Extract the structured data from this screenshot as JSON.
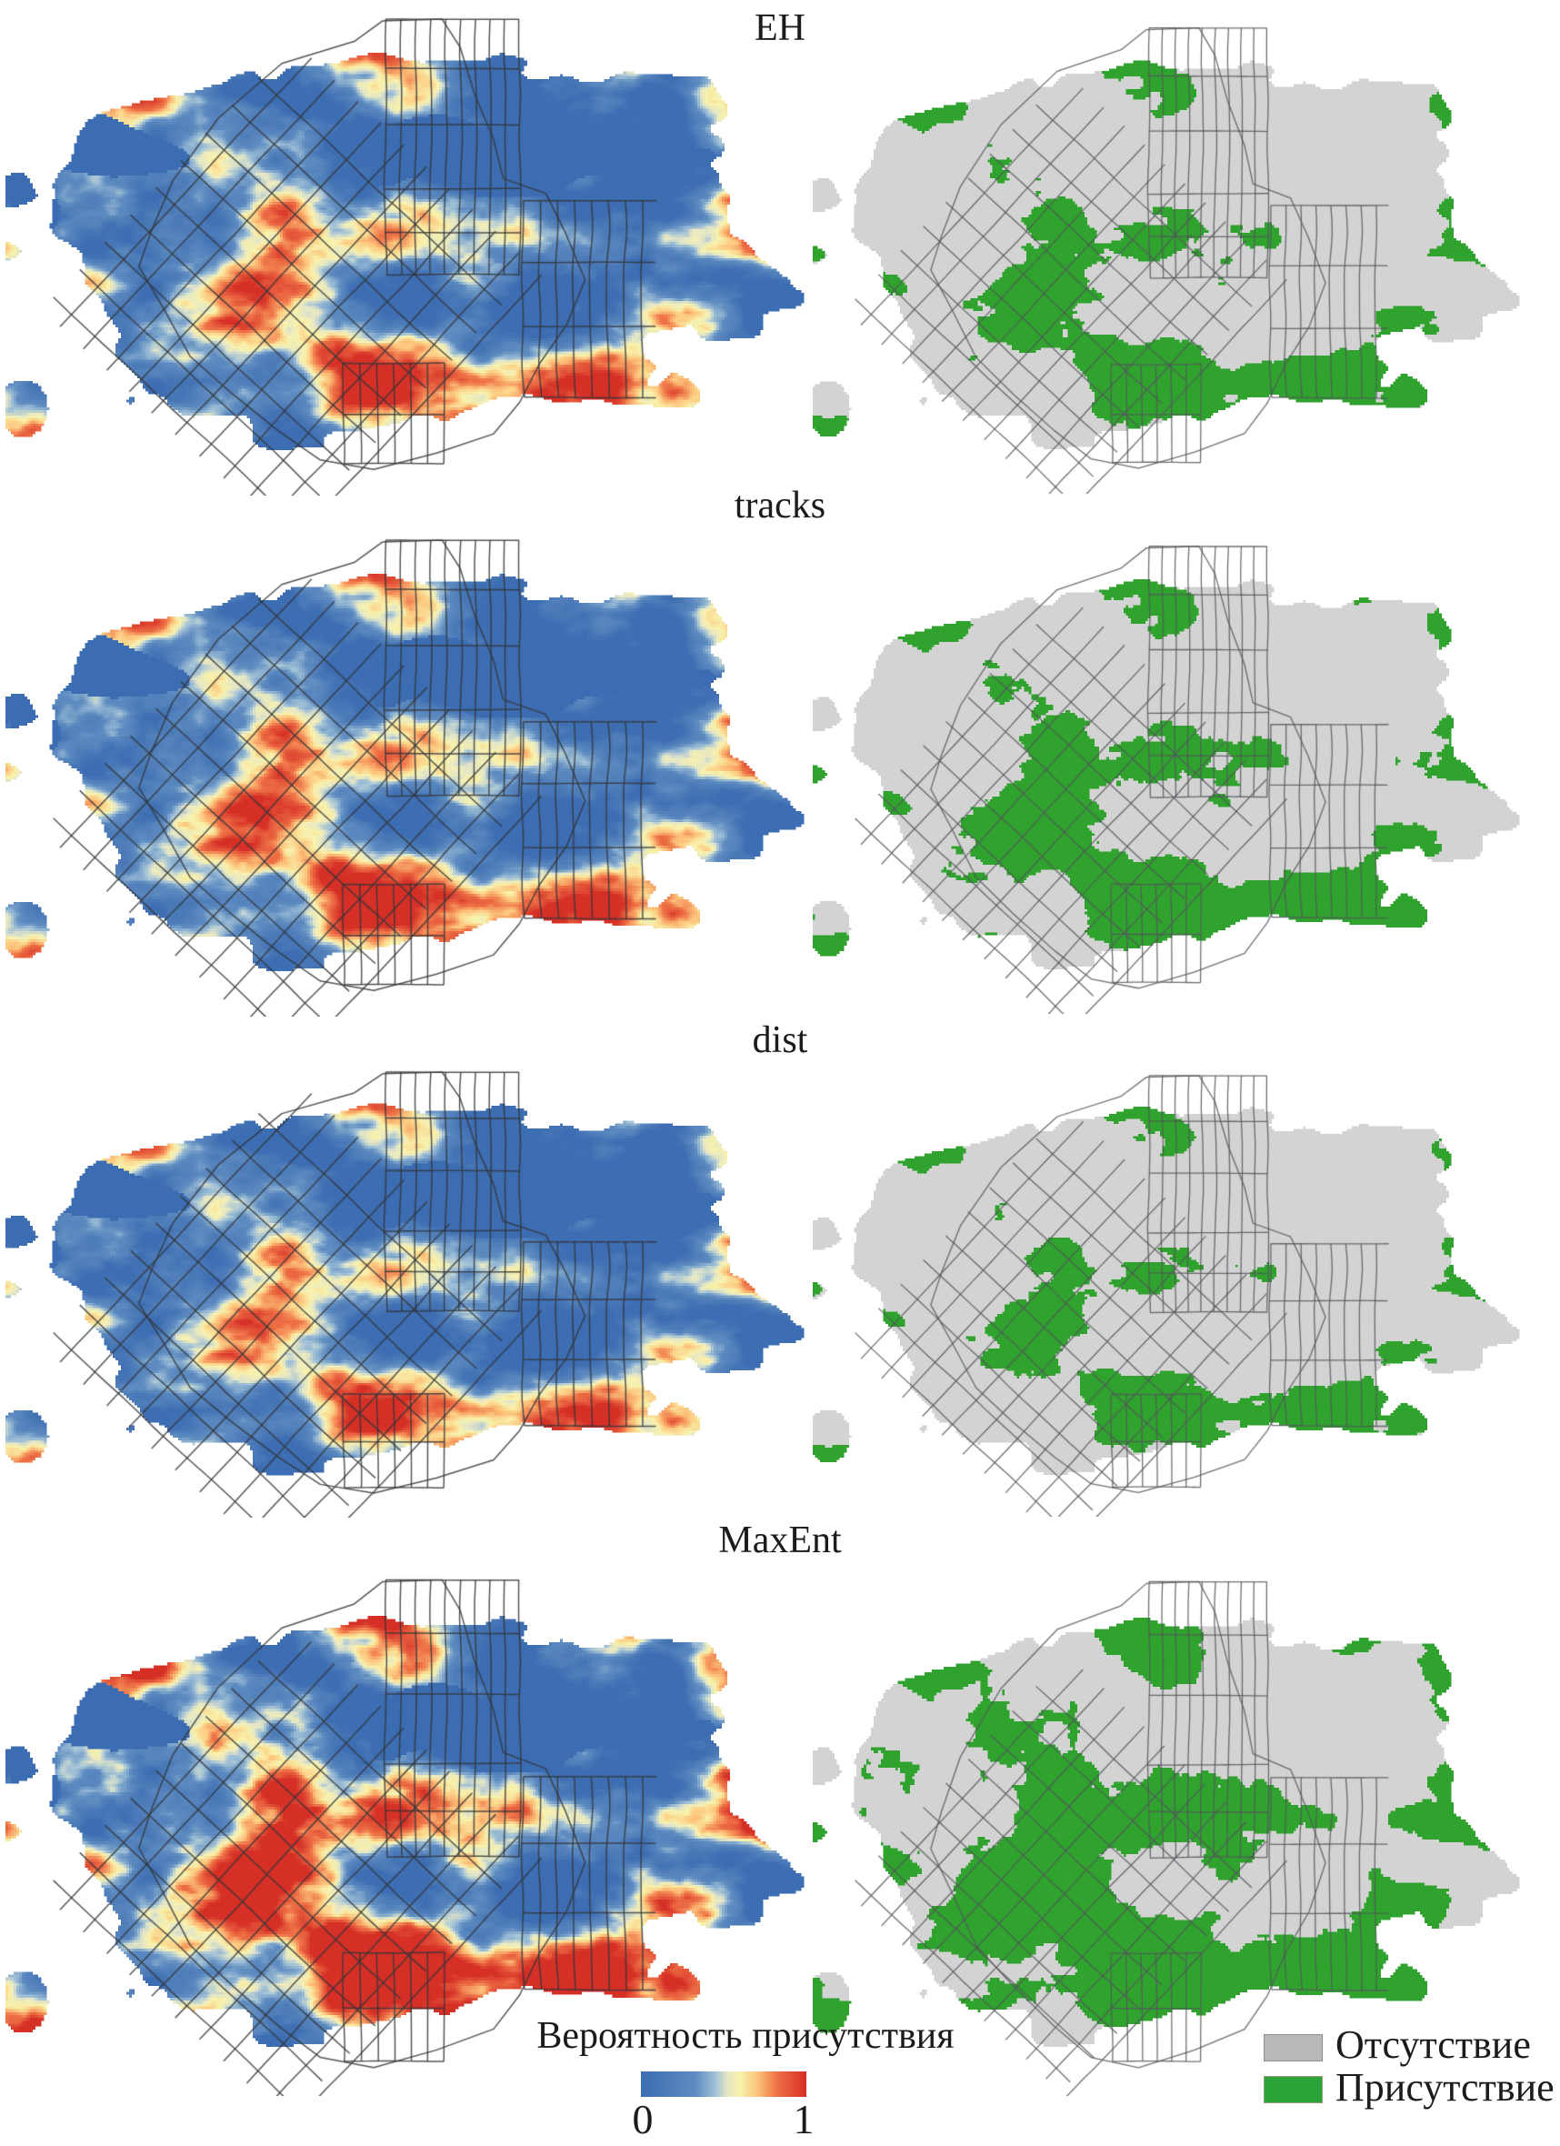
{
  "figure": {
    "rows": [
      {
        "label": "EH",
        "contrast": 1.0,
        "bias": 0.0,
        "hot": 0.55,
        "green_threshold": 0.55
      },
      {
        "label": "tracks",
        "contrast": 1.0,
        "bias": 0.02,
        "hot": 0.65,
        "green_threshold": 0.52
      },
      {
        "label": "dist",
        "contrast": 1.0,
        "bias": -0.035,
        "hot": 0.48,
        "green_threshold": 0.565
      },
      {
        "label": "MaxEnt",
        "contrast": 1.18,
        "bias": 0.09,
        "hot": 0.85,
        "green_threshold": 0.445
      }
    ],
    "colorbar": {
      "title": "Вероятность присутствия",
      "min_label": "0",
      "max_label": "1"
    },
    "colormap_stops": [
      "#3d6db2",
      "#5e8bc0",
      "#9fc0d6",
      "#e4e6c6",
      "#f8f2ac",
      "#fdc77e",
      "#ee7247",
      "#d52f26"
    ],
    "legend": {
      "absence_label": "Отсутствие",
      "presence_label": "Присутствие",
      "absence_swatch": "#b9b9b9",
      "presence_swatch": "#2aa439"
    },
    "map_colors": {
      "water_blue": "#3c6cb1",
      "absence_fill": "#d3d3d3",
      "presence_fill": "#2fa32e",
      "boundary_prob": "#33363a",
      "boundary_bin": "#54565a",
      "background": "#ffffff"
    }
  }
}
